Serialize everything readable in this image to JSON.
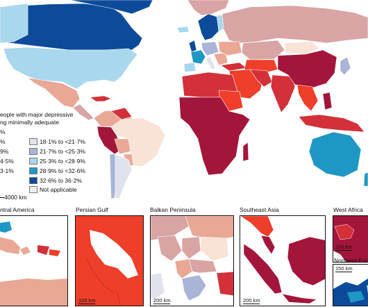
{
  "legend": {
    "title_line1": "eople with major depressive",
    "title_line2": "ng minimally adequate",
    "left_fragments": [
      "%",
      "%",
      "9%",
      "4·5%",
      "3·1%"
    ],
    "right_items": [
      {
        "label": "18·1% to <21·7%",
        "color": "#e0e2ee"
      },
      {
        "label": "21·7% to <25·3%",
        "color": "#aab4d6"
      },
      {
        "label": "25·3% to <28·9%",
        "color": "#a9d7ee"
      },
      {
        "label": "28·9% to <32·6%",
        "color": "#1f97c4"
      },
      {
        "label": "32·6% to 36·2%",
        "color": "#0d4b9a"
      },
      {
        "label": "Not applicable",
        "color": "#eeeeee"
      }
    ],
    "left_colors": [
      "#a3153a",
      "#d3303a",
      "#ef3e2a",
      "#e9a796",
      "#f9e2d6"
    ]
  },
  "scale": {
    "label": "4000 km"
  },
  "insets": [
    {
      "title": "ntral America",
      "scale": ""
    },
    {
      "title": "Persian Gulf",
      "scale": "100 km"
    },
    {
      "title": "Balkan Peninsula",
      "scale": "200 km"
    },
    {
      "title": "Southeast Asia",
      "scale": "200 km"
    },
    {
      "title": "West Africa",
      "scale": "150 km"
    }
  ],
  "northern_europe": {
    "title": "Northern Eur",
    "scale": "150 km"
  },
  "colors": {
    "darkred": "#a3153a",
    "red": "#d3303a",
    "orange_red": "#ef3e2a",
    "salmon": "#e9a796",
    "pink": "#d9a4a4",
    "peach": "#f9e2d6",
    "lavender": "#e0e2ee",
    "blue_grey": "#aab4d6",
    "light_blue": "#a9d7ee",
    "mid_blue": "#1f97c4",
    "dark_blue": "#0d4b9a"
  }
}
